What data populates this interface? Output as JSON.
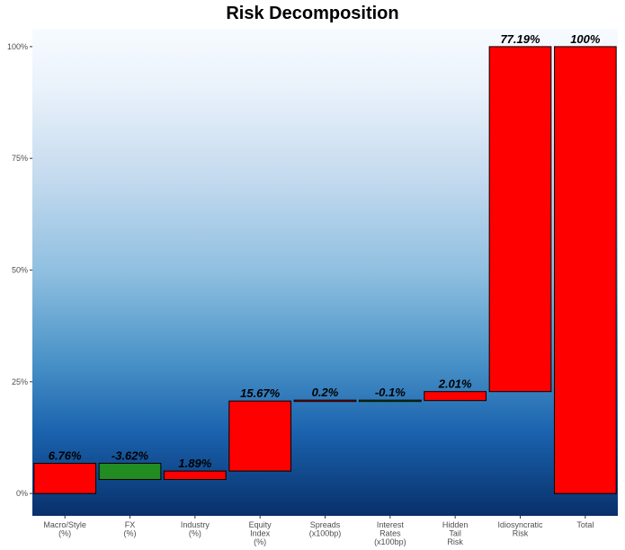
{
  "chart_data": {
    "type": "waterfall-bar",
    "title": "Risk Decomposition",
    "xlabel": "",
    "ylabel": "",
    "ylim": [
      -5,
      104
    ],
    "y_ticks": [
      0,
      25,
      50,
      75,
      100
    ],
    "y_tick_labels": [
      "0%",
      "25%",
      "50%",
      "75%",
      "100%"
    ],
    "colors": {
      "positive": "#ff0000",
      "negative": "#228b22",
      "outline": "#000000"
    },
    "bars": [
      {
        "category": [
          "Macro/Style",
          "(%)"
        ],
        "start": 0,
        "end": 6.76,
        "label": "6.76%",
        "sign": "positive"
      },
      {
        "category": [
          "FX",
          "(%)"
        ],
        "start": 6.76,
        "end": 3.14,
        "label": "-3.62%",
        "sign": "negative"
      },
      {
        "category": [
          "Industry",
          "(%)"
        ],
        "start": 3.14,
        "end": 5.03,
        "label": "1.89%",
        "sign": "positive"
      },
      {
        "category": [
          "Equity",
          "Index",
          "(%)"
        ],
        "start": 5.03,
        "end": 20.7,
        "label": "15.67%",
        "sign": "positive"
      },
      {
        "category": [
          "Spreads",
          "(x100bp)"
        ],
        "start": 20.7,
        "end": 20.9,
        "label": "0.2%",
        "sign": "positive"
      },
      {
        "category": [
          "Interest",
          "Rates",
          "(x100bp)"
        ],
        "start": 20.9,
        "end": 20.8,
        "label": "-0.1%",
        "sign": "negative"
      },
      {
        "category": [
          "Hidden",
          "Tail",
          "Risk"
        ],
        "start": 20.8,
        "end": 22.81,
        "label": "2.01%",
        "sign": "positive"
      },
      {
        "category": [
          "Idiosyncratic",
          "Risk"
        ],
        "start": 22.81,
        "end": 100,
        "label": "77.19%",
        "sign": "positive"
      },
      {
        "category": [
          "Total"
        ],
        "start": 0,
        "end": 100,
        "label": "100%",
        "sign": "positive"
      }
    ]
  }
}
